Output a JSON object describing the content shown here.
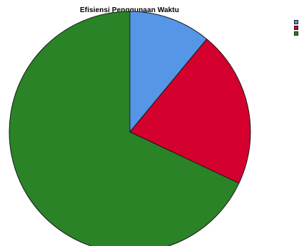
{
  "chart_data": {
    "type": "pie",
    "title": "Efisiensi Penggunaan Waktu",
    "slices": [
      {
        "label": "",
        "value": 11.0,
        "color": "#5596e6"
      },
      {
        "label": "",
        "value": 21.0,
        "color": "#d4002e"
      },
      {
        "label": "",
        "value": 68.0,
        "color": "#2a8326"
      }
    ],
    "start_angle_deg": 0,
    "direction": "clockwise",
    "legend_position": "top-right",
    "outline_color": "#1a1a1a"
  }
}
